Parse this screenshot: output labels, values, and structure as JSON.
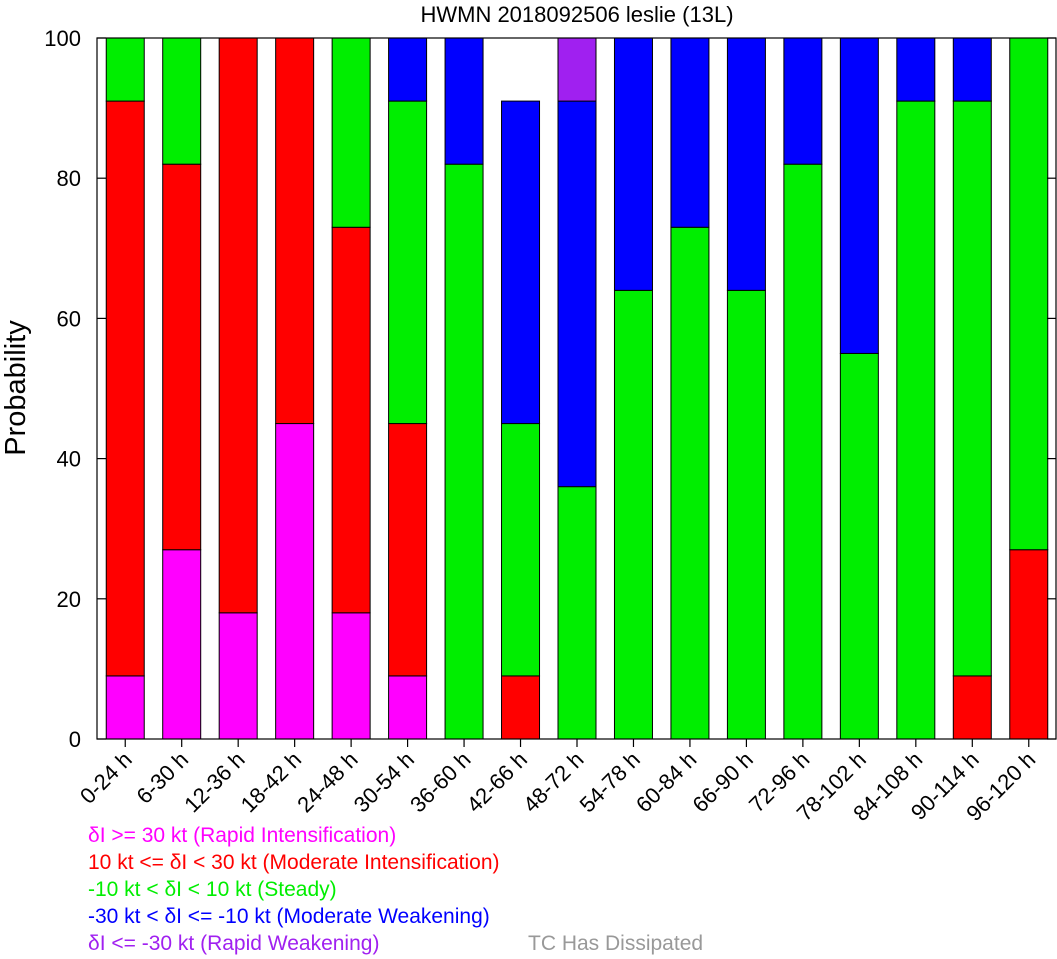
{
  "chart_data": {
    "type": "bar",
    "stacked": true,
    "title": "HWMN 2018092506 leslie (13L)",
    "ylabel": "Probability",
    "xlabel": "",
    "ylim": [
      0,
      100
    ],
    "yticks": [
      "0",
      "20",
      "40",
      "60",
      "80",
      "100"
    ],
    "grid": false,
    "legend_placement": "bottom",
    "categories": [
      "0-24 h",
      "6-30 h",
      "12-36 h",
      "18-42 h",
      "24-48 h",
      "30-54 h",
      "36-60 h",
      "42-66 h",
      "48-72 h",
      "54-78 h",
      "60-84 h",
      "66-90 h",
      "72-96 h",
      "78-102 h",
      "84-108 h",
      "90-114 h",
      "96-120 h"
    ],
    "series": [
      {
        "name": "δI >= 30 kt (Rapid Intensification)",
        "color": "#ff00ff",
        "values": [
          9,
          27,
          18,
          45,
          18,
          9,
          0,
          0,
          0,
          0,
          0,
          0,
          0,
          0,
          0,
          0,
          0
        ]
      },
      {
        "name": "10 kt <= δI < 30 kt (Moderate Intensification)",
        "color": "#ff0000",
        "values": [
          82,
          55,
          82,
          55,
          55,
          36,
          0,
          9,
          0,
          0,
          0,
          0,
          0,
          0,
          0,
          9,
          27
        ]
      },
      {
        "name": "-10 kt < δI < 10 kt (Steady)",
        "color": "#00ee00",
        "values": [
          9,
          18,
          0,
          0,
          27,
          46,
          82,
          36,
          36,
          64,
          73,
          64,
          82,
          55,
          91,
          82,
          73
        ]
      },
      {
        "name": "-30 kt < δI <= -10 kt (Moderate Weakening)",
        "color": "#0000ff",
        "values": [
          0,
          0,
          0,
          0,
          0,
          9,
          18,
          46,
          55,
          36,
          27,
          36,
          18,
          45,
          9,
          9,
          0
        ]
      },
      {
        "name": "δI <= -30 kt (Rapid Weakening)",
        "color": "#a020f0",
        "values": [
          0,
          0,
          0,
          0,
          0,
          0,
          0,
          0,
          9,
          0,
          0,
          0,
          0,
          0,
          0,
          0,
          0
        ]
      }
    ],
    "dissipated_label": "TC Has Dissipated",
    "dissipated_color": "#999999"
  }
}
